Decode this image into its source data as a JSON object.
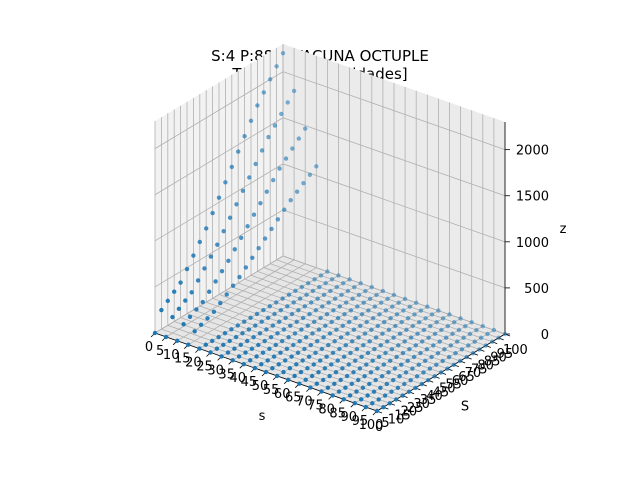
{
  "chart_data": {
    "type": "scatter",
    "projection": "3d",
    "title_line1": "S:4 P:885: VACUNA OCTUPLE",
    "title_line2": "Total ventas [unidades]",
    "xlabel": "s",
    "ylabel": "S",
    "zlabel": "z",
    "xlim": [
      0,
      100
    ],
    "ylim": [
      0,
      100
    ],
    "zlim": [
      0,
      2300
    ],
    "x_tick_labels": [
      "0",
      "5",
      "10",
      "15",
      "20",
      "25",
      "30",
      "35",
      "40",
      "45",
      "50",
      "55",
      "60",
      "65",
      "70",
      "75",
      "80",
      "85",
      "90",
      "95",
      "100"
    ],
    "y_tick_labels": [
      "0",
      "5",
      "10",
      "15",
      "20",
      "25",
      "30",
      "35",
      "40",
      "45",
      "50",
      "55",
      "60",
      "65",
      "70",
      "75",
      "80",
      "85",
      "90",
      "95",
      "100"
    ],
    "z_tick_labels": [
      "0",
      "500",
      "1000",
      "1500",
      "2000"
    ],
    "z_ticks": [
      0,
      500,
      1000,
      1500,
      2000
    ],
    "grid": true,
    "marker_color": "#1f77b4",
    "s_values": [
      0,
      5,
      10,
      15,
      20,
      25,
      30,
      35,
      40,
      45,
      50,
      55,
      60,
      65,
      70,
      75,
      80,
      85,
      90,
      95,
      100
    ],
    "S_values": [
      0,
      5,
      10,
      15,
      20,
      25,
      30,
      35,
      40,
      45,
      50,
      55,
      60,
      65,
      70,
      75,
      80,
      85,
      90,
      95,
      100
    ],
    "description_of_surface": {
      "baseline_z": 0,
      "tiers": [
        {
          "S_max": 20,
          "z_range": [
            150,
            380
          ]
        },
        {
          "S_max": 40,
          "z_range": [
            380,
            800
          ]
        },
        {
          "S_max": 60,
          "z_range": [
            800,
            1300
          ]
        },
        {
          "S_max": 80,
          "z_range": [
            1300,
            1800
          ]
        },
        {
          "S_max": 100,
          "z_range": [
            1800,
            2200
          ]
        }
      ]
    }
  }
}
